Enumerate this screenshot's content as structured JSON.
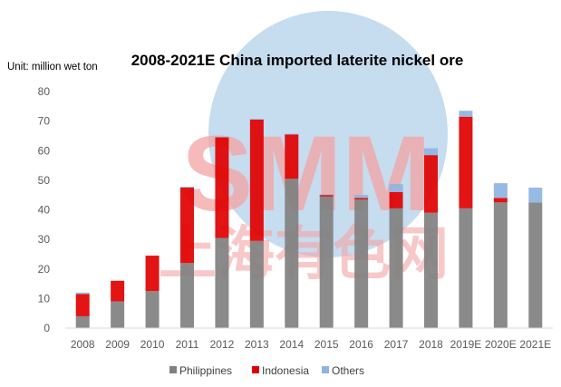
{
  "chart_data": {
    "type": "bar",
    "stacked": true,
    "title": "2008-2021E China imported laterite nickel ore",
    "unit_label": "Unit: million wet ton",
    "xlabel": "",
    "ylabel": "",
    "ylim": [
      0,
      80
    ],
    "yticks": [
      0,
      10,
      20,
      30,
      40,
      50,
      60,
      70,
      80
    ],
    "grid": false,
    "legend_position": "bottom",
    "categories": [
      "2008",
      "2009",
      "2010",
      "2011",
      "2012",
      "2013",
      "2014",
      "2015",
      "2016",
      "2017",
      "2018",
      "2019E",
      "2020E",
      "2021E"
    ],
    "series": [
      {
        "name": "Philippines",
        "color": "#808080",
        "values": [
          4,
          9,
          12.5,
          22,
          30.5,
          29.5,
          50.5,
          44.5,
          43.5,
          40.5,
          39,
          40.5,
          42.5,
          42.5
        ]
      },
      {
        "name": "Indonesia",
        "color": "#e00000",
        "values": [
          7.5,
          7,
          12,
          25.5,
          34,
          41,
          15,
          0.5,
          0.5,
          5.5,
          19.5,
          31,
          1.5,
          0
        ]
      },
      {
        "name": "Others",
        "color": "#8db4e2",
        "values": [
          0.5,
          0,
          0,
          0.3,
          0.2,
          0.2,
          0.2,
          0.3,
          1,
          2.7,
          2.3,
          2,
          5,
          5
        ]
      }
    ]
  },
  "watermark": {
    "text": "SMM",
    "subtext": "上海有色网",
    "circle_color": "#c6dcef",
    "text_color": "#f3a3a3"
  }
}
